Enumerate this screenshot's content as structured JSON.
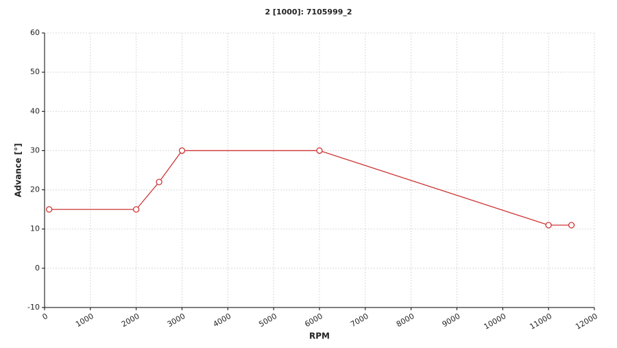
{
  "chart_data": {
    "type": "line",
    "title": "2 [1000]: 7105999_2",
    "xlabel": "RPM",
    "ylabel": "Advance [°]",
    "x": [
      100,
      2000,
      2500,
      3000,
      6000,
      11000,
      11500
    ],
    "values": [
      15,
      15,
      22,
      30,
      30,
      11,
      11
    ],
    "color": "#cc3333",
    "xlim": [
      0,
      12000
    ],
    "ylim": [
      -10,
      60
    ],
    "xticks": [
      0,
      1000,
      2000,
      3000,
      4000,
      5000,
      6000,
      7000,
      8000,
      9000,
      10000,
      11000,
      12000
    ],
    "yticks": [
      -10,
      0,
      10,
      20,
      30,
      40,
      50,
      60
    ],
    "grid": true
  }
}
